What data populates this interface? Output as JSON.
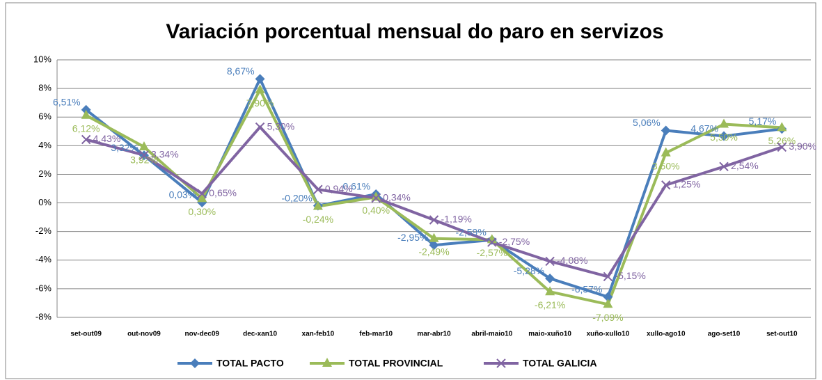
{
  "chart_data": {
    "type": "line",
    "title": "Variación porcentual mensual do paro en servizos",
    "categories": [
      "set-out09",
      "out-nov09",
      "nov-dec09",
      "dec-xan10",
      "xan-feb10",
      "feb-mar10",
      "mar-abr10",
      "abril-maio10",
      "maio-xuño10",
      "xuño-xullo10",
      "xullo-ago10",
      "ago-set10",
      "set-out10"
    ],
    "series": [
      {
        "name": "TOTAL PACTO",
        "color": "#4a7ebb",
        "marker": "diamond",
        "values": [
          6.51,
          3.32,
          0.03,
          8.67,
          -0.2,
          0.61,
          -2.95,
          -2.59,
          -5.28,
          -6.57,
          5.06,
          4.67,
          5.17
        ],
        "value_labels": [
          "6,51%",
          "3,32%",
          "0,03%",
          "8,67%",
          "-0,20%",
          "0,61%",
          "-2,95%",
          "-2,59%",
          "-5,28%",
          "-6,57%",
          "5,06%",
          "4,67%",
          "5,17%"
        ]
      },
      {
        "name": "TOTAL PROVINCIAL",
        "color": "#9bbb59",
        "marker": "triangle",
        "values": [
          6.12,
          3.92,
          0.3,
          7.9,
          -0.24,
          0.4,
          -2.49,
          -2.57,
          -6.21,
          -7.09,
          3.5,
          5.5,
          5.26
        ],
        "value_labels": [
          "6,12%",
          "3,92%",
          "0,30%",
          "7,90%",
          "-0,24%",
          "0,40%",
          "-2,49%",
          "-2,57%",
          "-6,21%",
          "-7,09%",
          "3,50%",
          "5,50%",
          "5,26%"
        ]
      },
      {
        "name": "TOTAL GALICIA",
        "color": "#8064a2",
        "marker": "x",
        "values": [
          4.43,
          3.34,
          0.65,
          5.3,
          0.94,
          0.34,
          -1.19,
          -2.75,
          -4.08,
          -5.15,
          1.25,
          2.54,
          3.9
        ],
        "value_labels": [
          "4,43%",
          "3,34%",
          "0,65%",
          "5,30%",
          "0,94%",
          "0,34%",
          "-1,19%",
          "-2,75%",
          "-4,08%",
          "-5,15%",
          "1,25%",
          "2,54%",
          "3,90%"
        ]
      }
    ],
    "ylim": [
      -8,
      10
    ],
    "yticks": [
      {
        "value": -8,
        "label": "-8%"
      },
      {
        "value": -6,
        "label": "-6%"
      },
      {
        "value": -4,
        "label": "-4%"
      },
      {
        "value": -2,
        "label": "-2%"
      },
      {
        "value": 0,
        "label": "0%"
      },
      {
        "value": 2,
        "label": "2%"
      },
      {
        "value": 4,
        "label": "4%"
      },
      {
        "value": 6,
        "label": "6%"
      },
      {
        "value": 8,
        "label": "8%"
      },
      {
        "value": 10,
        "label": "10%"
      }
    ],
    "grid": true,
    "legend": "bottom"
  }
}
